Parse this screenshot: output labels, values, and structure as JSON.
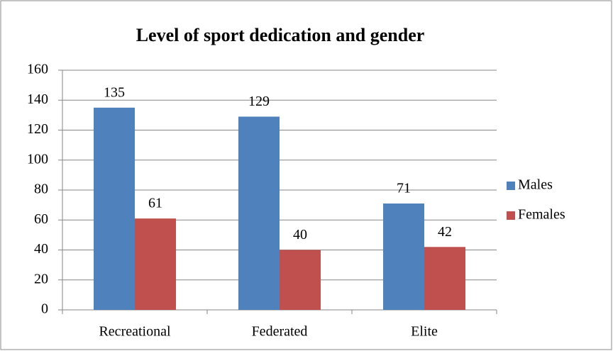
{
  "chart_data": {
    "type": "bar",
    "title": "Level of sport dedication and gender",
    "categories": [
      "Recreational",
      "Federated",
      "Elite"
    ],
    "series": [
      {
        "name": "Males",
        "color": "#4f81bd",
        "values": [
          135,
          129,
          71
        ]
      },
      {
        "name": "Females",
        "color": "#c0504d",
        "values": [
          61,
          40,
          42
        ]
      }
    ],
    "ylim": [
      0,
      160
    ],
    "yticks": [
      0,
      20,
      40,
      60,
      80,
      100,
      120,
      140,
      160
    ],
    "grid": true,
    "legend": "right"
  }
}
